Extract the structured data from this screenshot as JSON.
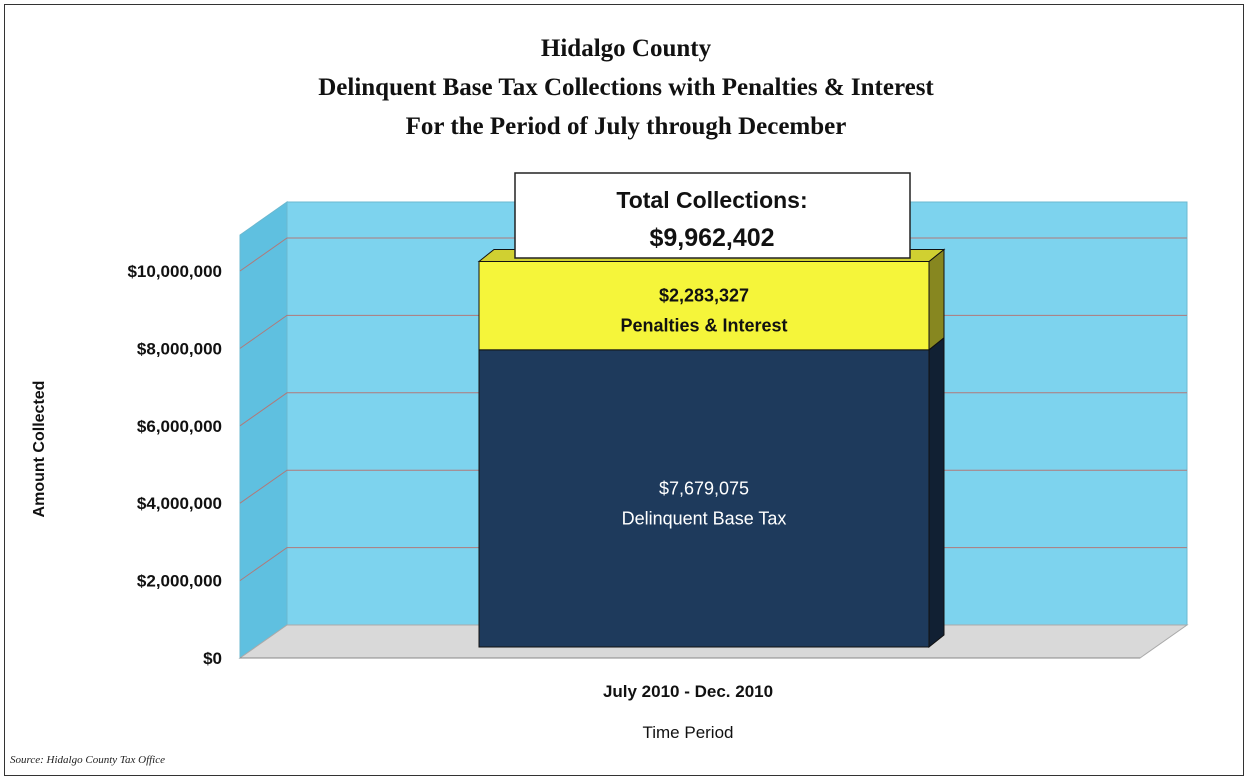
{
  "chart_data": {
    "type": "bar",
    "stacked": true,
    "three_d": true,
    "title": [
      "Hidalgo County",
      "Delinquent Base Tax Collections with Penalties & Interest",
      "For the Period of July through December"
    ],
    "categories": [
      "July 2010 - Dec. 2010"
    ],
    "series": [
      {
        "name": "Delinquent Base Tax",
        "values": [
          7679075
        ],
        "label": "$7,679,075",
        "color": "#1e3a5c"
      },
      {
        "name": "Penalties & Interest",
        "values": [
          2283327
        ],
        "label": "$2,283,327",
        "color": "#f5f53a"
      }
    ],
    "total": {
      "heading": "Total Collections:",
      "value": "$9,962,402"
    },
    "xlabel": "Time Period",
    "ylabel": "Amount Collected",
    "ylim": [
      0,
      10000000
    ],
    "yticks": [
      0,
      2000000,
      4000000,
      6000000,
      8000000,
      10000000
    ],
    "ytick_labels": [
      "$0",
      "$2,000,000",
      "$4,000,000",
      "$6,000,000",
      "$8,000,000",
      "$10,000,000"
    ],
    "grid": true,
    "wall_color": "#7dd3ee",
    "floor_color": "#d9d9d9"
  },
  "source": "Source: Hidalgo County Tax Office"
}
